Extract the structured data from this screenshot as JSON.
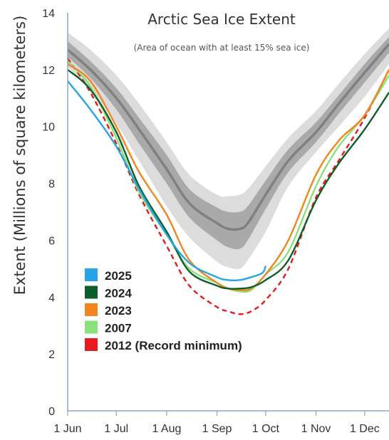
{
  "chart_data": {
    "type": "line",
    "title": "Arctic Sea Ice Extent",
    "subtitle": "(Area of ocean with at least 15% sea ice)",
    "ylabel": "Extent (Millions of square kilometers)",
    "xlabel": "",
    "ylim": [
      0,
      14
    ],
    "y_ticks": [
      "0",
      "2",
      "4",
      "6",
      "8",
      "10",
      "12",
      "14"
    ],
    "xlim": [
      "2000-06-01",
      "2000-12-16"
    ],
    "x_ticks": [
      {
        "label": "1 Jun",
        "date": "2000-06-01"
      },
      {
        "label": "1 Jul",
        "date": "2000-07-01"
      },
      {
        "label": "1 Aug",
        "date": "2000-08-01"
      },
      {
        "label": "1 Sep",
        "date": "2000-09-01"
      },
      {
        "label": "1 Oct",
        "date": "2000-10-01"
      },
      {
        "label": "1 Nov",
        "date": "2000-11-01"
      },
      {
        "label": "1 Dec",
        "date": "2000-12-01"
      }
    ],
    "grid": false,
    "legend_position": "bottom-left",
    "climatology": {
      "x": [
        "2000-06-01",
        "2000-06-15",
        "2000-07-01",
        "2000-07-15",
        "2000-08-01",
        "2000-08-15",
        "2000-09-01",
        "2000-09-08",
        "2000-09-15",
        "2000-09-20",
        "2000-10-01",
        "2000-10-15",
        "2000-11-01",
        "2000-11-15",
        "2000-12-01",
        "2000-12-16"
      ],
      "median": [
        12.7,
        12.0,
        11.0,
        9.9,
        8.5,
        7.3,
        6.6,
        6.4,
        6.4,
        6.6,
        7.6,
        8.8,
        9.8,
        10.8,
        11.9,
        12.9
      ],
      "iqr_low": [
        12.45,
        11.7,
        10.6,
        9.4,
        8.0,
        6.8,
        6.0,
        5.75,
        5.7,
        6.0,
        7.1,
        8.4,
        9.45,
        10.45,
        11.55,
        12.6
      ],
      "iqr_high": [
        13.0,
        12.3,
        11.35,
        10.3,
        9.0,
        7.8,
        7.15,
        7.0,
        7.0,
        7.2,
        8.1,
        9.2,
        10.15,
        11.1,
        12.2,
        13.15
      ],
      "idr_low": [
        12.1,
        11.25,
        10.1,
        8.8,
        7.2,
        6.1,
        5.25,
        5.05,
        5.0,
        5.3,
        6.3,
        7.9,
        9.1,
        10.0,
        11.05,
        12.2
      ],
      "idr_high": [
        13.3,
        12.7,
        11.8,
        10.8,
        9.45,
        8.3,
        7.6,
        7.55,
        7.6,
        7.8,
        8.6,
        9.6,
        10.55,
        11.5,
        12.55,
        13.45
      ]
    },
    "series": [
      {
        "name": "2025",
        "color": "#29a3e8",
        "dashed": false,
        "x": [
          "2000-06-01",
          "2000-06-15",
          "2000-07-01",
          "2000-07-15",
          "2000-08-01",
          "2000-08-15",
          "2000-09-01",
          "2000-09-08",
          "2000-09-15",
          "2000-09-22",
          "2000-09-29",
          "2000-10-01"
        ],
        "y": [
          11.6,
          10.6,
          9.3,
          7.8,
          6.2,
          5.2,
          4.7,
          4.6,
          4.6,
          4.7,
          4.85,
          5.1
        ]
      },
      {
        "name": "2024",
        "color": "#0d5e2b",
        "dashed": false,
        "x": [
          "2000-06-01",
          "2000-06-15",
          "2000-07-01",
          "2000-07-15",
          "2000-08-01",
          "2000-08-15",
          "2000-09-01",
          "2000-09-08",
          "2000-09-15",
          "2000-09-22",
          "2000-10-01",
          "2000-10-15",
          "2000-11-01",
          "2000-11-15",
          "2000-12-01",
          "2000-12-16"
        ],
        "y": [
          12.0,
          11.3,
          9.8,
          7.9,
          6.3,
          4.9,
          4.4,
          4.3,
          4.3,
          4.35,
          4.6,
          5.3,
          7.4,
          8.7,
          9.9,
          11.2
        ]
      },
      {
        "name": "2023",
        "color": "#f08521",
        "dashed": false,
        "x": [
          "2000-06-01",
          "2000-06-15",
          "2000-07-01",
          "2000-07-15",
          "2000-08-01",
          "2000-08-15",
          "2000-09-01",
          "2000-09-08",
          "2000-09-15",
          "2000-09-22",
          "2000-10-01",
          "2000-10-15",
          "2000-11-01",
          "2000-11-15",
          "2000-12-01",
          "2000-12-16"
        ],
        "y": [
          12.2,
          11.6,
          10.0,
          8.4,
          6.9,
          5.3,
          4.5,
          4.3,
          4.25,
          4.3,
          4.8,
          6.0,
          8.3,
          9.5,
          10.4,
          12.0
        ]
      },
      {
        "name": "2007",
        "color": "#8be07a",
        "dashed": false,
        "x": [
          "2000-06-01",
          "2000-06-15",
          "2000-07-01",
          "2000-07-15",
          "2000-08-01",
          "2000-08-15",
          "2000-09-01",
          "2000-09-08",
          "2000-09-15",
          "2000-09-22",
          "2000-10-01",
          "2000-10-15",
          "2000-11-01",
          "2000-11-15",
          "2000-12-01",
          "2000-12-16"
        ],
        "y": [
          12.3,
          11.4,
          9.6,
          7.7,
          6.2,
          5.0,
          4.5,
          4.3,
          4.2,
          4.25,
          4.8,
          5.6,
          7.9,
          9.3,
          10.4,
          11.8
        ]
      },
      {
        "name": "2012 (Record minimum)",
        "color": "#e8191c",
        "dashed": true,
        "x": [
          "2000-06-01",
          "2000-06-15",
          "2000-07-01",
          "2000-07-15",
          "2000-08-01",
          "2000-08-15",
          "2000-09-01",
          "2000-09-08",
          "2000-09-15",
          "2000-09-22",
          "2000-10-01",
          "2000-10-15",
          "2000-11-01",
          "2000-11-15",
          "2000-12-01",
          "2000-12-16"
        ],
        "y": [
          12.4,
          11.2,
          9.4,
          7.6,
          5.8,
          4.4,
          3.65,
          3.5,
          3.4,
          3.5,
          3.9,
          5.0,
          7.5,
          8.8,
          10.3,
          12.0
        ]
      }
    ]
  }
}
